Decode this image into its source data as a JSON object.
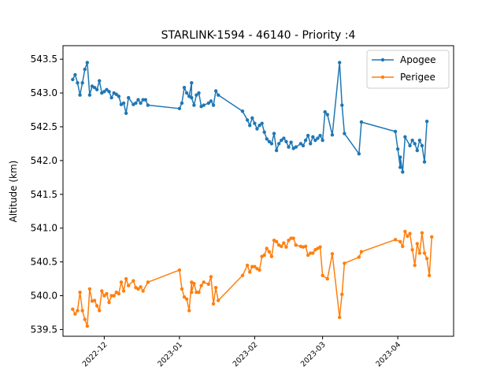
{
  "chart_data": {
    "type": "line",
    "title": "STARLINK-1594 - 46140 - Priority :4",
    "xlabel": "",
    "ylabel": "Altitude (km)",
    "x_range": [
      "2022-11-14",
      "2023-04-24"
    ],
    "ylim": [
      539.4,
      543.7
    ],
    "y_ticks": [
      539.5,
      540.0,
      540.5,
      541.0,
      541.5,
      542.0,
      542.5,
      543.0,
      543.5
    ],
    "x_ticks": [
      "2022-12",
      "2023-01",
      "2023-02",
      "2023-03",
      "2023-04"
    ],
    "grid": false,
    "legend_position": "top-right",
    "series": [
      {
        "name": "Apogee",
        "color": "#1f77b4",
        "points": [
          [
            "2022-11-18",
            543.2
          ],
          [
            "2022-11-19",
            543.27
          ],
          [
            "2022-11-20",
            543.15
          ],
          [
            "2022-11-21",
            542.97
          ],
          [
            "2022-11-22",
            543.15
          ],
          [
            "2022-11-23",
            543.35
          ],
          [
            "2022-11-24",
            543.45
          ],
          [
            "2022-11-25",
            542.97
          ],
          [
            "2022-11-26",
            543.1
          ],
          [
            "2022-11-27",
            543.08
          ],
          [
            "2022-11-28",
            543.05
          ],
          [
            "2022-11-29",
            543.18
          ],
          [
            "2022-11-30",
            543.0
          ],
          [
            "2022-12-01",
            543.02
          ],
          [
            "2022-12-02",
            543.05
          ],
          [
            "2022-12-03",
            543.02
          ],
          [
            "2022-12-04",
            542.93
          ],
          [
            "2022-12-05",
            543.0
          ],
          [
            "2022-12-06",
            542.98
          ],
          [
            "2022-12-07",
            542.95
          ],
          [
            "2022-12-08",
            542.83
          ],
          [
            "2022-12-09",
            542.85
          ],
          [
            "2022-12-10",
            542.7
          ],
          [
            "2022-12-11",
            542.93
          ],
          [
            "2022-12-13",
            542.83
          ],
          [
            "2022-12-14",
            542.85
          ],
          [
            "2022-12-15",
            542.9
          ],
          [
            "2022-12-16",
            542.85
          ],
          [
            "2022-12-17",
            542.9
          ],
          [
            "2022-12-18",
            542.9
          ],
          [
            "2022-12-19",
            542.82
          ],
          [
            "2023-01-01",
            542.77
          ],
          [
            "2023-01-02",
            542.85
          ],
          [
            "2023-01-03",
            543.08
          ],
          [
            "2023-01-04",
            543.0
          ],
          [
            "2023-01-05",
            542.95
          ],
          [
            "2023-01-06",
            543.15
          ],
          [
            "2023-01-06",
            542.93
          ],
          [
            "2023-01-07",
            542.82
          ],
          [
            "2023-01-08",
            542.97
          ],
          [
            "2023-01-09",
            543.0
          ],
          [
            "2023-01-10",
            542.8
          ],
          [
            "2023-01-11",
            542.82
          ],
          [
            "2023-01-13",
            542.85
          ],
          [
            "2023-01-14",
            542.88
          ],
          [
            "2023-01-15",
            542.82
          ],
          [
            "2023-01-16",
            543.03
          ],
          [
            "2023-01-17",
            542.97
          ],
          [
            "2023-01-27",
            542.73
          ],
          [
            "2023-01-29",
            542.6
          ],
          [
            "2023-01-30",
            542.52
          ],
          [
            "2023-01-31",
            542.63
          ],
          [
            "2023-02-01",
            542.55
          ],
          [
            "2023-02-02",
            542.47
          ],
          [
            "2023-02-03",
            542.52
          ],
          [
            "2023-02-04",
            542.55
          ],
          [
            "2023-02-05",
            542.42
          ],
          [
            "2023-02-06",
            542.32
          ],
          [
            "2023-02-07",
            542.28
          ],
          [
            "2023-02-08",
            542.25
          ],
          [
            "2023-02-09",
            542.4
          ],
          [
            "2023-02-10",
            542.15
          ],
          [
            "2023-02-11",
            542.25
          ],
          [
            "2023-02-12",
            542.3
          ],
          [
            "2023-02-13",
            542.33
          ],
          [
            "2023-02-14",
            542.28
          ],
          [
            "2023-02-15",
            542.2
          ],
          [
            "2023-02-16",
            542.27
          ],
          [
            "2023-02-17",
            542.18
          ],
          [
            "2023-02-18",
            542.2
          ],
          [
            "2023-02-20",
            542.25
          ],
          [
            "2023-02-21",
            542.22
          ],
          [
            "2023-02-22",
            542.3
          ],
          [
            "2023-02-23",
            542.37
          ],
          [
            "2023-02-24",
            542.25
          ],
          [
            "2023-02-25",
            542.35
          ],
          [
            "2023-02-26",
            542.3
          ],
          [
            "2023-02-27",
            542.33
          ],
          [
            "2023-02-28",
            542.37
          ],
          [
            "2023-03-01",
            542.3
          ],
          [
            "2023-03-02",
            542.72
          ],
          [
            "2023-03-03",
            542.68
          ],
          [
            "2023-03-05",
            542.38
          ],
          [
            "2023-03-08",
            543.45
          ],
          [
            "2023-03-09",
            542.82
          ],
          [
            "2023-03-10",
            542.4
          ],
          [
            "2023-03-16",
            542.1
          ],
          [
            "2023-03-17",
            542.57
          ],
          [
            "2023-03-31",
            542.43
          ],
          [
            "2023-04-01",
            542.17
          ],
          [
            "2023-04-02",
            541.9
          ],
          [
            "2023-04-02",
            542.05
          ],
          [
            "2023-04-03",
            541.83
          ],
          [
            "2023-04-04",
            542.35
          ],
          [
            "2023-04-06",
            542.22
          ],
          [
            "2023-04-07",
            542.3
          ],
          [
            "2023-04-08",
            542.25
          ],
          [
            "2023-04-09",
            542.15
          ],
          [
            "2023-04-10",
            542.3
          ],
          [
            "2023-04-11",
            542.22
          ],
          [
            "2023-04-12",
            541.98
          ],
          [
            "2023-04-13",
            542.58
          ]
        ]
      },
      {
        "name": "Perigee",
        "color": "#ff7f0e",
        "points": [
          [
            "2022-11-18",
            539.8
          ],
          [
            "2022-11-19",
            539.73
          ],
          [
            "2022-11-20",
            539.78
          ],
          [
            "2022-11-21",
            540.05
          ],
          [
            "2022-11-22",
            539.78
          ],
          [
            "2022-11-23",
            539.65
          ],
          [
            "2022-11-24",
            539.55
          ],
          [
            "2022-11-25",
            540.1
          ],
          [
            "2022-11-26",
            539.92
          ],
          [
            "2022-11-27",
            539.93
          ],
          [
            "2022-11-28",
            539.85
          ],
          [
            "2022-11-29",
            539.78
          ],
          [
            "2022-11-30",
            540.07
          ],
          [
            "2022-12-01",
            540.0
          ],
          [
            "2022-12-02",
            540.03
          ],
          [
            "2022-12-03",
            539.9
          ],
          [
            "2022-12-04",
            540.0
          ],
          [
            "2022-12-05",
            540.0
          ],
          [
            "2022-12-06",
            540.05
          ],
          [
            "2022-12-07",
            540.03
          ],
          [
            "2022-12-08",
            540.2
          ],
          [
            "2022-12-09",
            540.07
          ],
          [
            "2022-12-10",
            540.25
          ],
          [
            "2022-12-11",
            540.15
          ],
          [
            "2022-12-13",
            540.22
          ],
          [
            "2022-12-14",
            540.12
          ],
          [
            "2022-12-15",
            540.1
          ],
          [
            "2022-12-16",
            540.13
          ],
          [
            "2022-12-17",
            540.07
          ],
          [
            "2022-12-19",
            540.2
          ],
          [
            "2023-01-01",
            540.38
          ],
          [
            "2023-01-02",
            540.1
          ],
          [
            "2023-01-03",
            539.98
          ],
          [
            "2023-01-04",
            539.95
          ],
          [
            "2023-01-05",
            539.78
          ],
          [
            "2023-01-06",
            540.2
          ],
          [
            "2023-01-06",
            540.05
          ],
          [
            "2023-01-07",
            540.18
          ],
          [
            "2023-01-08",
            540.05
          ],
          [
            "2023-01-09",
            540.05
          ],
          [
            "2023-01-10",
            540.15
          ],
          [
            "2023-01-11",
            540.2
          ],
          [
            "2023-01-13",
            540.17
          ],
          [
            "2023-01-14",
            540.28
          ],
          [
            "2023-01-15",
            539.88
          ],
          [
            "2023-01-16",
            540.12
          ],
          [
            "2023-01-17",
            539.93
          ],
          [
            "2023-01-27",
            540.3
          ],
          [
            "2023-01-29",
            540.45
          ],
          [
            "2023-01-30",
            540.35
          ],
          [
            "2023-01-31",
            540.43
          ],
          [
            "2023-02-01",
            540.43
          ],
          [
            "2023-02-02",
            540.4
          ],
          [
            "2023-02-03",
            540.38
          ],
          [
            "2023-02-04",
            540.58
          ],
          [
            "2023-02-05",
            540.6
          ],
          [
            "2023-02-06",
            540.7
          ],
          [
            "2023-02-07",
            540.65
          ],
          [
            "2023-02-08",
            540.58
          ],
          [
            "2023-02-09",
            540.82
          ],
          [
            "2023-02-10",
            540.8
          ],
          [
            "2023-02-11",
            540.75
          ],
          [
            "2023-02-12",
            540.73
          ],
          [
            "2023-02-13",
            540.78
          ],
          [
            "2023-02-14",
            540.72
          ],
          [
            "2023-02-15",
            540.82
          ],
          [
            "2023-02-16",
            540.85
          ],
          [
            "2023-02-17",
            540.85
          ],
          [
            "2023-02-18",
            540.75
          ],
          [
            "2023-02-20",
            540.73
          ],
          [
            "2023-02-21",
            540.72
          ],
          [
            "2023-02-22",
            540.73
          ],
          [
            "2023-02-23",
            540.6
          ],
          [
            "2023-02-24",
            540.63
          ],
          [
            "2023-02-25",
            540.63
          ],
          [
            "2023-02-26",
            540.68
          ],
          [
            "2023-02-27",
            540.7
          ],
          [
            "2023-02-28",
            540.72
          ],
          [
            "2023-03-01",
            540.3
          ],
          [
            "2023-03-03",
            540.25
          ],
          [
            "2023-03-05",
            540.62
          ],
          [
            "2023-03-08",
            539.68
          ],
          [
            "2023-03-09",
            540.02
          ],
          [
            "2023-03-10",
            540.48
          ],
          [
            "2023-03-16",
            540.57
          ],
          [
            "2023-03-17",
            540.65
          ],
          [
            "2023-03-31",
            540.83
          ],
          [
            "2023-04-02",
            540.8
          ],
          [
            "2023-04-03",
            540.73
          ],
          [
            "2023-04-04",
            540.95
          ],
          [
            "2023-04-05",
            540.88
          ],
          [
            "2023-04-06",
            540.92
          ],
          [
            "2023-04-07",
            540.68
          ],
          [
            "2023-04-08",
            540.45
          ],
          [
            "2023-04-09",
            540.77
          ],
          [
            "2023-04-10",
            540.63
          ],
          [
            "2023-04-11",
            540.93
          ],
          [
            "2023-04-12",
            540.63
          ],
          [
            "2023-04-13",
            540.55
          ],
          [
            "2023-04-14",
            540.3
          ],
          [
            "2023-04-15",
            540.87
          ]
        ]
      }
    ]
  }
}
